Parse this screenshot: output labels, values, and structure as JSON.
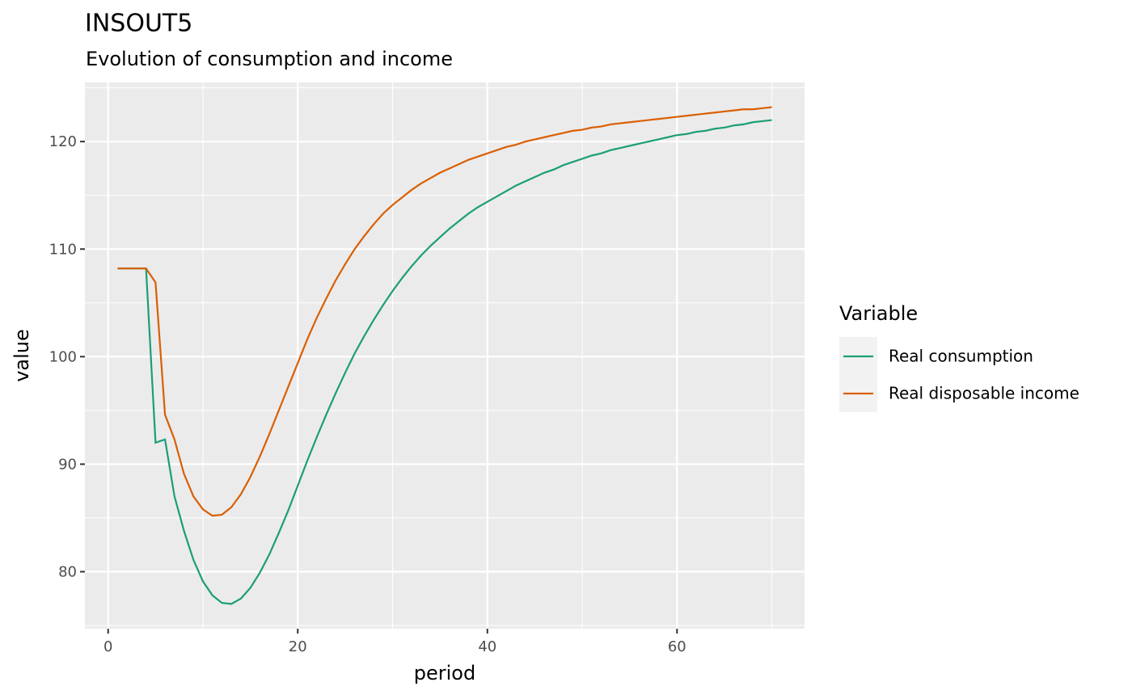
{
  "chart_data": {
    "type": "line",
    "title": "INSOUT5",
    "subtitle": "Evolution of consumption and income",
    "x_label": "period",
    "y_label": "value",
    "legend_title": "Variable",
    "legend_position": "right",
    "grid": true,
    "x": [
      1,
      2,
      3,
      4,
      5,
      6,
      7,
      8,
      9,
      10,
      11,
      12,
      13,
      14,
      15,
      16,
      17,
      18,
      19,
      20,
      21,
      22,
      23,
      24,
      25,
      26,
      27,
      28,
      29,
      30,
      31,
      32,
      33,
      34,
      35,
      36,
      37,
      38,
      39,
      40,
      41,
      42,
      43,
      44,
      45,
      46,
      47,
      48,
      49,
      50,
      51,
      52,
      53,
      54,
      55,
      56,
      57,
      58,
      59,
      60,
      61,
      62,
      63,
      64,
      65,
      66,
      67,
      68,
      69,
      70
    ],
    "xlim": [
      -2.45,
      73.45
    ],
    "xticks": [
      0,
      20,
      40,
      60
    ],
    "ylim": [
      74.7,
      125.5
    ],
    "yticks": [
      80,
      90,
      100,
      110,
      120
    ],
    "series": [
      {
        "name": "Real consumption",
        "color": "#1b9e77",
        "values": [
          108.2,
          108.2,
          108.2,
          108.2,
          92.0,
          92.3,
          87.0,
          83.8,
          81.1,
          79.1,
          77.8,
          77.1,
          77.0,
          77.5,
          78.5,
          79.9,
          81.6,
          83.6,
          85.7,
          88.0,
          90.3,
          92.5,
          94.6,
          96.6,
          98.5,
          100.3,
          101.9,
          103.4,
          104.8,
          106.1,
          107.3,
          108.4,
          109.4,
          110.3,
          111.1,
          111.9,
          112.6,
          113.3,
          113.9,
          114.4,
          114.9,
          115.4,
          115.9,
          116.3,
          116.7,
          117.1,
          117.4,
          117.8,
          118.1,
          118.4,
          118.7,
          118.9,
          119.2,
          119.4,
          119.6,
          119.8,
          120.0,
          120.2,
          120.4,
          120.6,
          120.7,
          120.9,
          121.0,
          121.2,
          121.3,
          121.5,
          121.6,
          121.8,
          121.9,
          122.0
        ]
      },
      {
        "name": "Real disposable income",
        "color": "#d95f02",
        "values": [
          108.2,
          108.2,
          108.2,
          108.2,
          106.9,
          94.6,
          92.3,
          89.1,
          87.0,
          85.8,
          85.2,
          85.3,
          86.0,
          87.2,
          88.8,
          90.7,
          92.8,
          95.0,
          97.2,
          99.4,
          101.6,
          103.6,
          105.4,
          107.1,
          108.6,
          110.0,
          111.2,
          112.3,
          113.3,
          114.1,
          114.8,
          115.5,
          116.1,
          116.6,
          117.1,
          117.5,
          117.9,
          118.3,
          118.6,
          118.9,
          119.2,
          119.5,
          119.7,
          120.0,
          120.2,
          120.4,
          120.6,
          120.8,
          121.0,
          121.1,
          121.3,
          121.4,
          121.6,
          121.7,
          121.8,
          121.9,
          122.0,
          122.1,
          122.2,
          122.3,
          122.4,
          122.5,
          122.6,
          122.7,
          122.8,
          122.9,
          123.0,
          123.0,
          123.1,
          123.2
        ]
      }
    ]
  }
}
